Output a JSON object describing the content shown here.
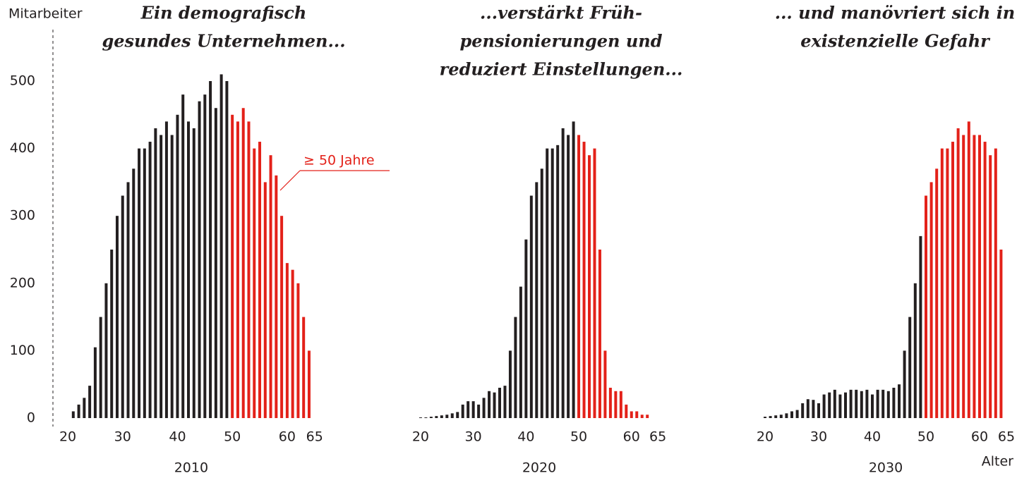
{
  "chart_data": [
    {
      "type": "bar",
      "title": [
        "Ein demografisch",
        "gesundes Unternehmen..."
      ],
      "ylabel": "Mitarbeiter",
      "xlabel": "2010",
      "annotation": "≥ 50 Jahre",
      "xlim": [
        18,
        66
      ],
      "xticks": [
        20,
        30,
        40,
        50,
        60,
        65
      ],
      "ylim": [
        0,
        500
      ],
      "yticks": [
        0,
        100,
        200,
        300,
        400,
        500
      ],
      "series": [
        {
          "color": "#231f20",
          "x": [
            21,
            22,
            23,
            24,
            25,
            26,
            27,
            28,
            29,
            30,
            31,
            32,
            33,
            34,
            35,
            36,
            37,
            38,
            39,
            40,
            41,
            42,
            43,
            44,
            45,
            46,
            47,
            48,
            49
          ],
          "values": [
            10,
            20,
            30,
            48,
            105,
            150,
            200,
            250,
            300,
            330,
            350,
            370,
            400,
            400,
            410,
            430,
            420,
            440,
            420,
            450,
            480,
            440,
            430,
            470,
            480,
            500,
            460,
            510,
            500
          ]
        },
        {
          "color": "#e32119",
          "x": [
            50,
            51,
            52,
            53,
            54,
            55,
            56,
            57,
            58,
            59,
            60,
            61,
            62,
            63,
            64
          ],
          "values": [
            450,
            440,
            460,
            440,
            400,
            410,
            350,
            390,
            360,
            300,
            230,
            220,
            200,
            150,
            100
          ]
        }
      ]
    },
    {
      "type": "bar",
      "title": [
        "...verstärkt Früh-",
        "pensionierungen und",
        "reduziert Einstellungen..."
      ],
      "xlabel": "2020",
      "xlim": [
        18,
        66
      ],
      "xticks": [
        20,
        30,
        40,
        50,
        60,
        65
      ],
      "ylim": [
        0,
        500
      ],
      "series": [
        {
          "color": "#231f20",
          "x": [
            20,
            21,
            22,
            23,
            24,
            25,
            26,
            27,
            28,
            29,
            30,
            31,
            32,
            33,
            34,
            35,
            36,
            37,
            38,
            39,
            40,
            41,
            42,
            43,
            44,
            45,
            46,
            47,
            48,
            49
          ],
          "values": [
            1,
            1,
            2,
            3,
            4,
            5,
            7,
            9,
            20,
            25,
            25,
            20,
            30,
            40,
            38,
            45,
            48,
            100,
            150,
            195,
            265,
            330,
            350,
            370,
            400,
            400,
            405,
            430,
            420,
            440
          ]
        },
        {
          "color": "#e32119",
          "x": [
            50,
            51,
            52,
            53,
            54,
            55,
            56,
            57,
            58,
            59,
            60,
            61,
            62,
            63
          ],
          "values": [
            420,
            410,
            390,
            400,
            250,
            100,
            45,
            40,
            40,
            20,
            10,
            10,
            5,
            5
          ]
        }
      ]
    },
    {
      "type": "bar",
      "title": [
        "... und manövriert sich in",
        "existenzielle Gefahr"
      ],
      "xlabel": "2030",
      "xaxis_title": "Alter",
      "xlim": [
        18,
        66
      ],
      "xticks": [
        20,
        30,
        40,
        50,
        60,
        65
      ],
      "ylim": [
        0,
        500
      ],
      "series": [
        {
          "color": "#231f20",
          "x": [
            20,
            21,
            22,
            23,
            24,
            25,
            26,
            27,
            28,
            29,
            30,
            31,
            32,
            33,
            34,
            35,
            36,
            37,
            38,
            39,
            40,
            41,
            42,
            43,
            44,
            45,
            46,
            47,
            48,
            49
          ],
          "values": [
            2,
            3,
            4,
            5,
            7,
            10,
            12,
            22,
            28,
            27,
            22,
            35,
            38,
            42,
            35,
            38,
            42,
            42,
            40,
            42,
            35,
            42,
            42,
            40,
            45,
            50,
            100,
            150,
            200,
            270
          ]
        },
        {
          "color": "#e32119",
          "x": [
            50,
            51,
            52,
            53,
            54,
            55,
            56,
            57,
            58,
            59,
            60,
            61,
            62,
            63,
            64
          ],
          "values": [
            330,
            350,
            370,
            400,
            400,
            410,
            430,
            420,
            440,
            420,
            420,
            410,
            390,
            400,
            250
          ]
        }
      ]
    }
  ]
}
